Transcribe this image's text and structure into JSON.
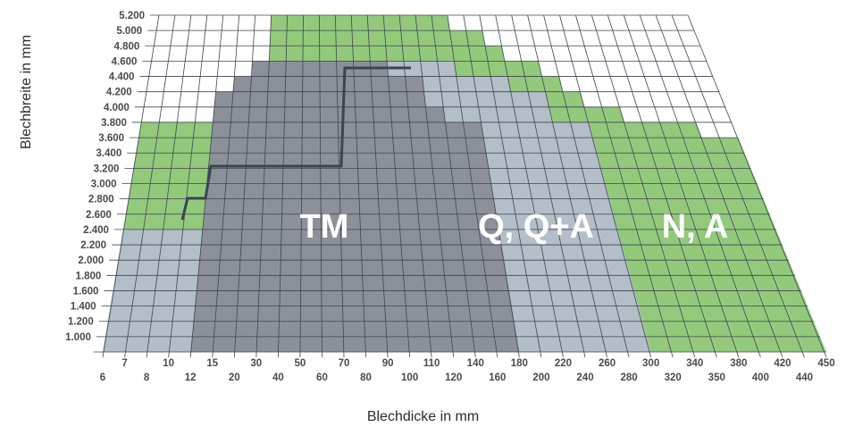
{
  "chart_data": {
    "type": "heatmap",
    "title": "",
    "xlabel": "Blechdicke in mm",
    "ylabel": "Blechbreite in mm",
    "x_ticks": [
      "6",
      "7",
      "8",
      "10",
      "12",
      "15",
      "20",
      "30",
      "40",
      "50",
      "60",
      "70",
      "80",
      "90",
      "100",
      "110",
      "120",
      "140",
      "160",
      "180",
      "200",
      "220",
      "240",
      "260",
      "280",
      "300",
      "320",
      "340",
      "350",
      "380",
      "400",
      "420",
      "440",
      "450"
    ],
    "y_ticks": [
      "1.000",
      "1.200",
      "1.400",
      "1.600",
      "1.800",
      "2.000",
      "2.200",
      "2.400",
      "2.600",
      "2.800",
      "3.000",
      "3.200",
      "3.400",
      "3.600",
      "3.800",
      "4.000",
      "4.200",
      "4.400",
      "4.600",
      "4.800",
      "5.000",
      "5.200"
    ],
    "regions": [
      {
        "name": "TM",
        "color": "#8c9199",
        "max_width_by_thickness": [
          0,
          0,
          0,
          0,
          4.2,
          4.4,
          4.6,
          4.6,
          4.6,
          4.6,
          4.6,
          4.6,
          4.6,
          4.6,
          4.4,
          4.4,
          4.0,
          3.8,
          3.8,
          0,
          0,
          0,
          0,
          0,
          0,
          0,
          0,
          0,
          0,
          0,
          0,
          0,
          0
        ]
      },
      {
        "name": "Q, Q+A",
        "color": "#b4bec8",
        "max_width_by_thickness": [
          2.4,
          2.4,
          2.4,
          2.4,
          2.4,
          4.0,
          4.2,
          4.6,
          4.6,
          4.6,
          4.6,
          4.6,
          4.6,
          4.6,
          4.6,
          4.6,
          4.6,
          4.6,
          4.4,
          4.4,
          4.4,
          4.2,
          4.2,
          3.8,
          3.8,
          0,
          0,
          0,
          0,
          0,
          0,
          0,
          0
        ]
      },
      {
        "name": "N, A",
        "color": "#93c97b",
        "max_width_by_thickness": [
          3.8,
          3.8,
          3.8,
          3.8,
          3.8,
          4.0,
          4.4,
          5.2,
          5.2,
          5.2,
          5.2,
          5.2,
          5.2,
          5.2,
          5.2,
          5.2,
          5.2,
          5.2,
          5.0,
          5.0,
          4.8,
          4.6,
          4.6,
          4.4,
          4.2,
          4.0,
          4.0,
          3.9,
          3.9,
          3.8,
          3.7,
          3.6,
          3.6
        ]
      }
    ],
    "tm_boundary_line": true,
    "grid": true
  },
  "labels": {
    "tm": "TM",
    "q": "Q, Q+A",
    "n": "N, A"
  },
  "colors": {
    "grid": "#3c4550",
    "green": "#93c97b",
    "light": "#b4bec8",
    "dark": "#8c9199",
    "line": "#3a4552"
  }
}
